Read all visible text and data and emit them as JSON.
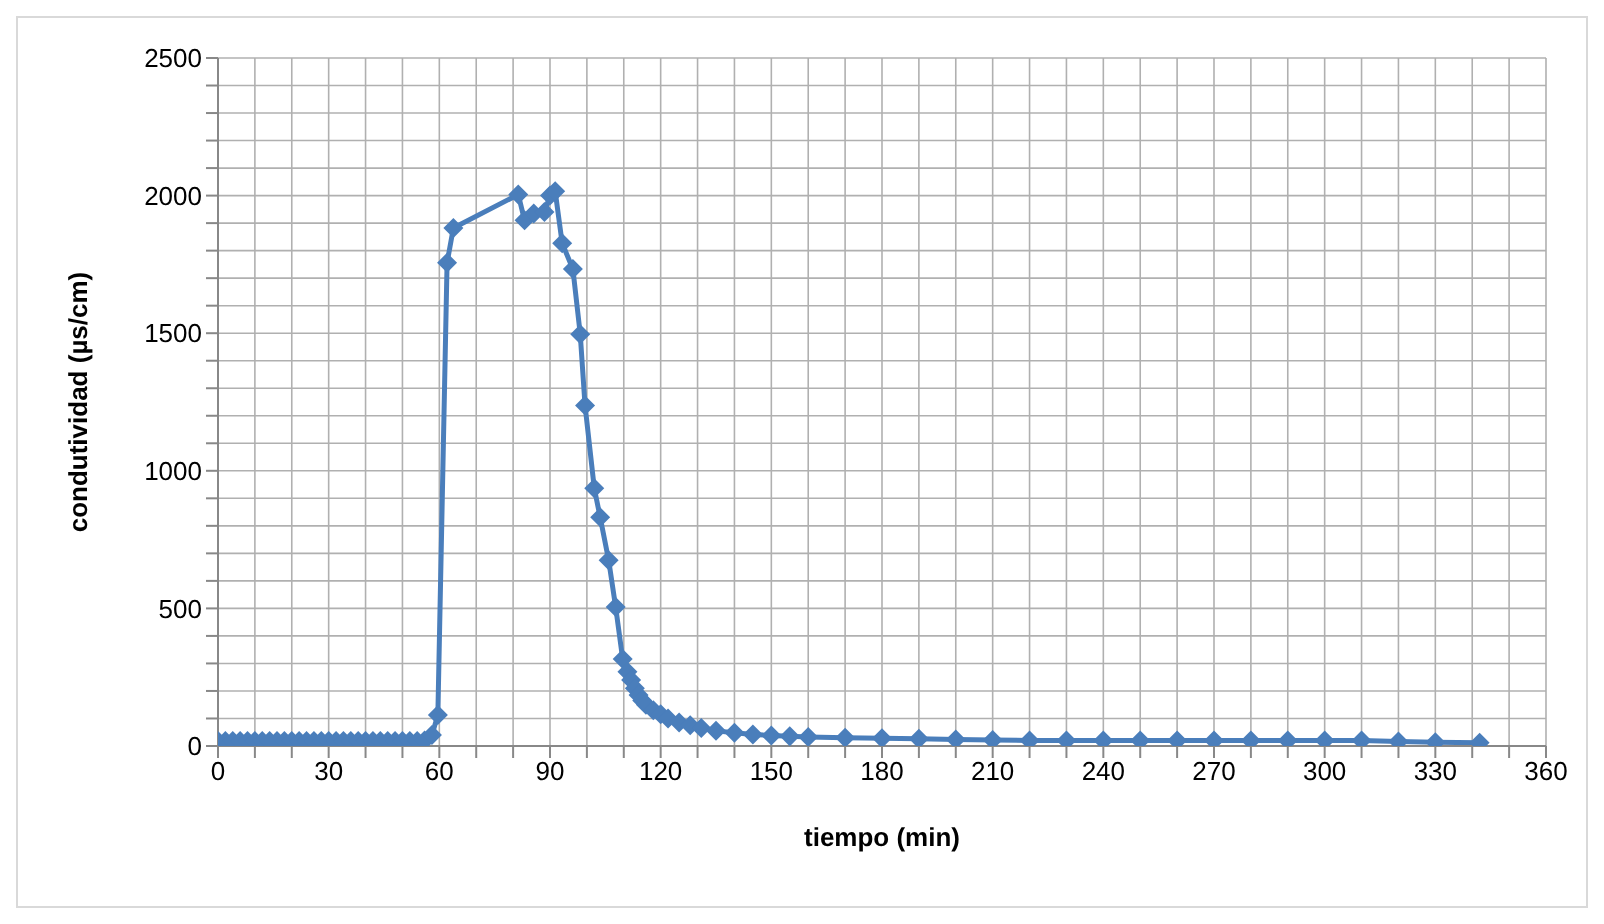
{
  "chart_data": {
    "type": "line",
    "xlabel": "tiempo (min)",
    "ylabel": "condutividad (µs/cm)",
    "x": [
      0,
      2,
      4,
      6,
      8,
      10,
      12,
      14,
      16,
      18,
      20,
      22,
      24,
      26,
      28,
      30,
      32,
      34,
      36,
      38,
      40,
      42,
      44,
      46,
      48,
      50,
      52,
      54,
      56,
      58,
      59.6,
      62.1,
      63.8,
      81.4,
      83.1,
      85.6,
      88.5,
      90,
      91.4,
      93.3,
      96.2,
      98.2,
      99.5,
      102,
      103.6,
      105.9,
      107.8,
      109.7,
      111,
      112,
      113,
      114,
      115,
      116,
      118,
      120,
      122,
      125,
      128,
      131,
      135,
      140,
      145,
      150,
      155,
      160,
      170,
      180,
      190,
      200,
      210,
      220,
      230,
      240,
      250,
      260,
      270,
      280,
      290,
      300,
      310,
      320,
      330,
      342
    ],
    "series": [
      {
        "color": "#4a7ebb",
        "values": [
          18,
          18,
          18,
          18,
          18,
          18,
          18,
          18,
          18,
          18,
          18,
          18,
          18,
          18,
          18,
          18,
          18,
          18,
          18,
          18,
          18,
          18,
          18,
          18,
          18,
          18,
          18,
          18,
          20,
          40,
          113,
          1756,
          1882,
          2004,
          1910,
          1935,
          1940,
          2000,
          2016,
          1827,
          1733,
          1496,
          1237,
          937,
          831,
          675,
          505,
          316,
          270,
          240,
          210,
          185,
          165,
          150,
          130,
          115,
          100,
          85,
          75,
          65,
          55,
          48,
          42,
          38,
          35,
          33,
          30,
          28,
          26,
          24,
          22,
          20,
          20,
          20,
          20,
          20,
          20,
          20,
          20,
          20,
          20,
          16,
          14,
          12
        ]
      }
    ],
    "marker": "diamond",
    "grid": true,
    "legend": false,
    "xlim": [
      0,
      360
    ],
    "xticks": [
      0,
      {
        "value": 10,
        "label": null
      },
      {
        "value": 20,
        "label": null
      },
      30,
      {
        "value": 40,
        "label": null
      },
      {
        "value": 50,
        "label": null
      },
      60,
      {
        "value": 70,
        "label": null
      },
      {
        "value": 80,
        "label": null
      },
      90,
      {
        "value": 100,
        "label": null
      },
      {
        "value": 110,
        "label": null
      },
      120,
      {
        "value": 130,
        "label": null
      },
      {
        "value": 140,
        "label": null
      },
      150,
      {
        "value": 160,
        "label": null
      },
      {
        "value": 170,
        "label": null
      },
      180,
      {
        "value": 190,
        "label": null
      },
      {
        "value": 200,
        "label": null
      },
      210,
      {
        "value": 220,
        "label": null
      },
      {
        "value": 230,
        "label": null
      },
      240,
      {
        "value": 250,
        "label": null
      },
      {
        "value": 260,
        "label": null
      },
      270,
      {
        "value": 280,
        "label": null
      },
      {
        "value": 290,
        "label": null
      },
      300,
      {
        "value": 310,
        "label": null
      },
      {
        "value": 320,
        "label": null
      },
      330,
      {
        "value": 340,
        "label": null
      },
      {
        "value": 350,
        "label": null
      },
      360
    ],
    "ylim": [
      0,
      2500
    ],
    "yticks": [
      0,
      {
        "value": 100,
        "label": null
      },
      {
        "value": 200,
        "label": null
      },
      {
        "value": 300,
        "label": null
      },
      {
        "value": 400,
        "label": null
      },
      500,
      {
        "value": 600,
        "label": null
      },
      {
        "value": 700,
        "label": null
      },
      {
        "value": 800,
        "label": null
      },
      {
        "value": 900,
        "label": null
      },
      1000,
      {
        "value": 1100,
        "label": null
      },
      {
        "value": 1200,
        "label": null
      },
      {
        "value": 1300,
        "label": null
      },
      {
        "value": 1400,
        "label": null
      },
      1500,
      {
        "value": 1600,
        "label": null
      },
      {
        "value": 1700,
        "label": null
      },
      {
        "value": 1800,
        "label": null
      },
      {
        "value": 1900,
        "label": null
      },
      2000,
      {
        "value": 2100,
        "label": null
      },
      {
        "value": 2200,
        "label": null
      },
      {
        "value": 2300,
        "label": null
      },
      {
        "value": 2400,
        "label": null
      },
      2500
    ]
  }
}
